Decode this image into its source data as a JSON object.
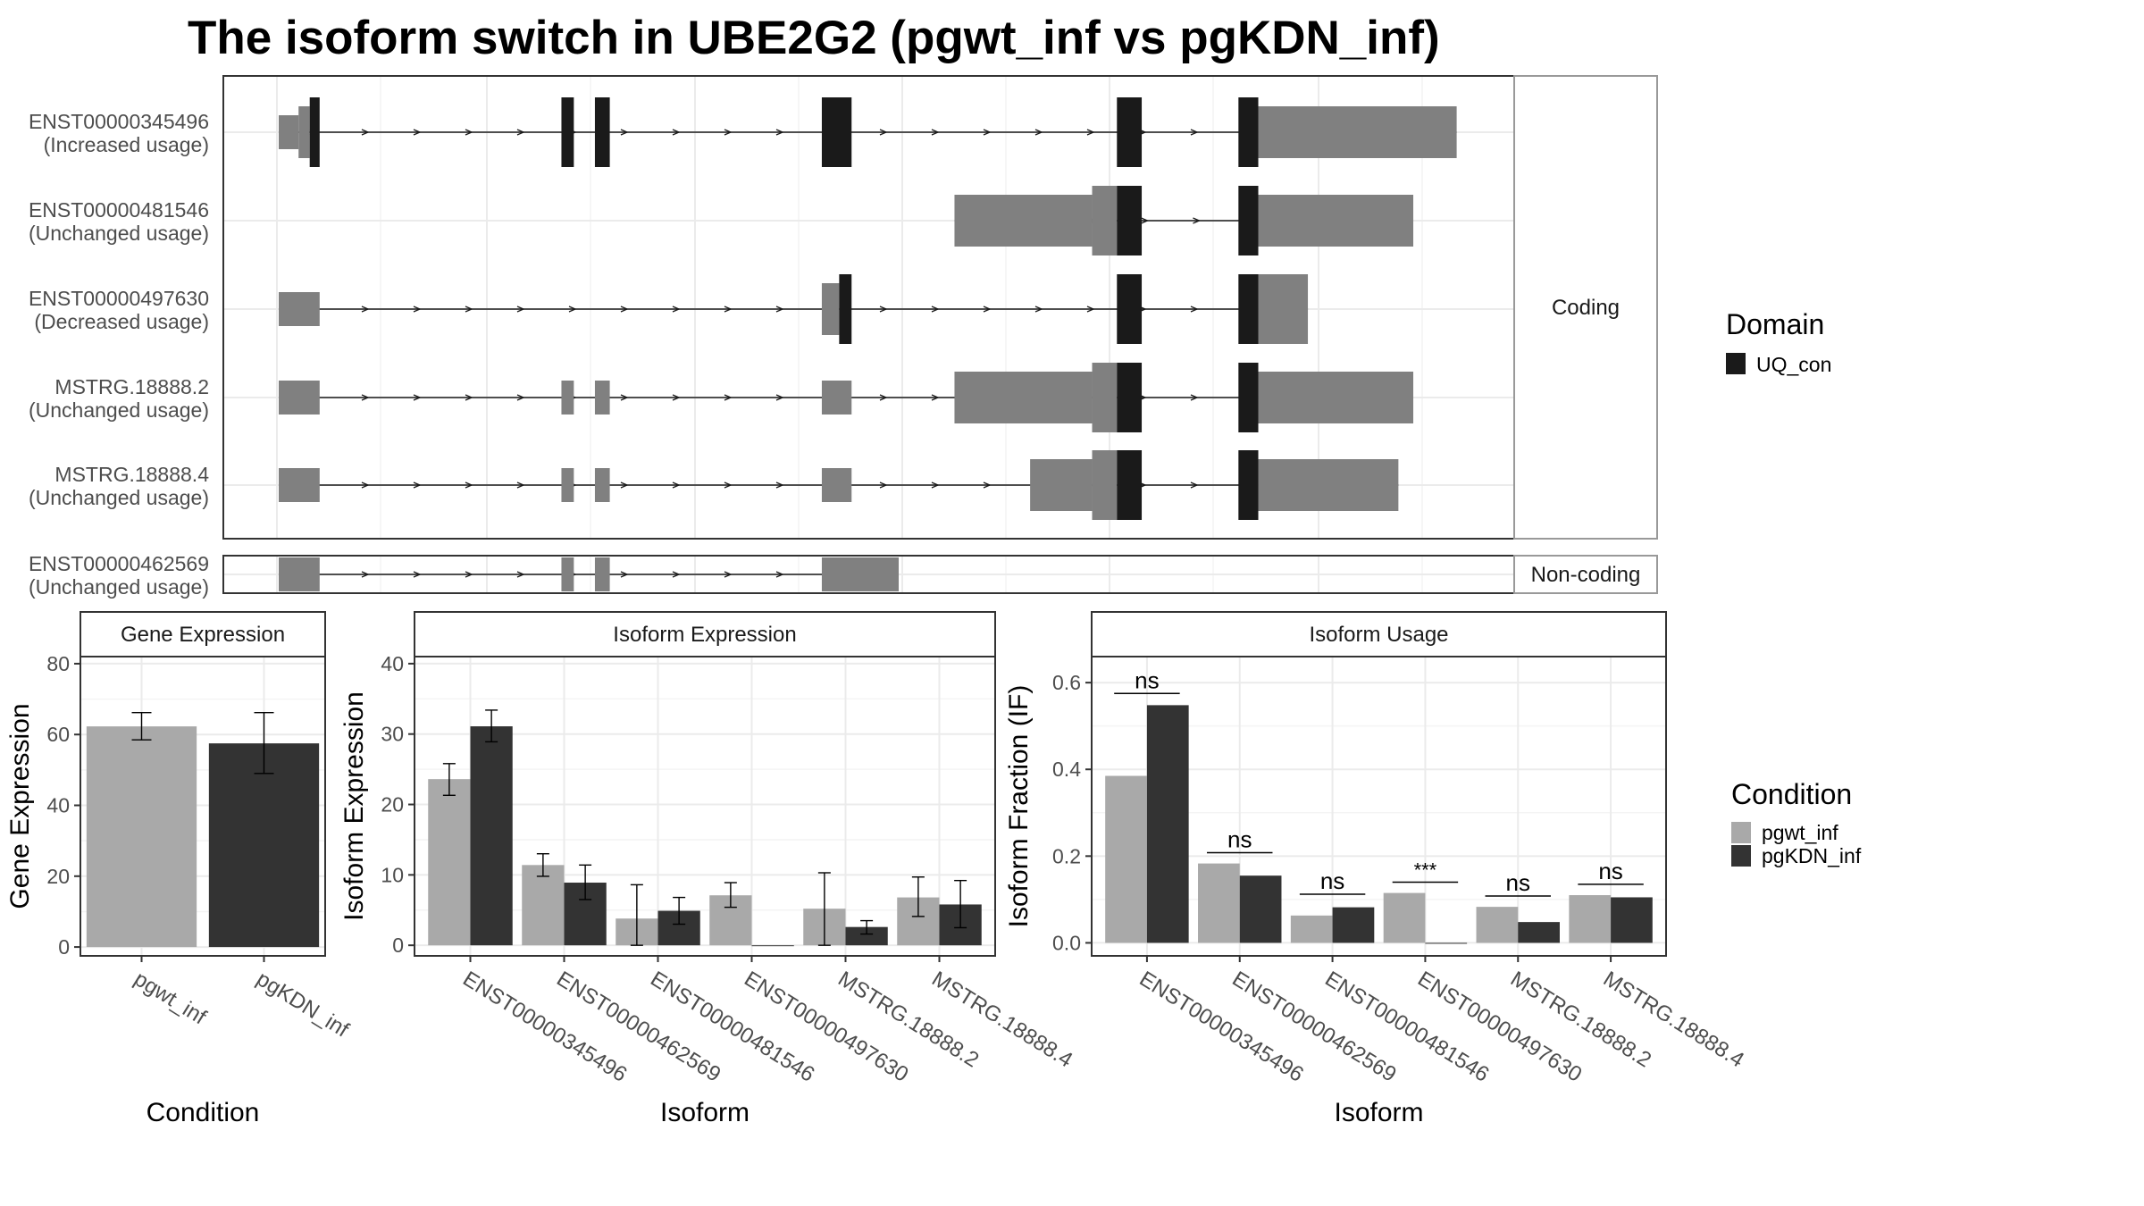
{
  "title": "The isoform switch in UBE2G2 (pgwt_inf vs pgKDN_inf)",
  "colors": {
    "domain": "#1a1a1a",
    "utr": "#808080",
    "pgwt_inf": "#a9a9a9",
    "pgKDN_inf": "#333333",
    "frame": "#333333",
    "grid_major": "#ebebeb",
    "grid_minor": "#f4f4f4",
    "strip_fill": "#ffffff"
  },
  "legend_domain": {
    "title": "Domain",
    "items": [
      {
        "label": "UQ_con",
        "color": "#1a1a1a"
      }
    ]
  },
  "legend_condition": {
    "title": "Condition",
    "items": [
      {
        "label": "pgwt_inf",
        "color": "#a9a9a9"
      },
      {
        "label": "pgKDN_inf",
        "color": "#333333"
      }
    ]
  },
  "structure": {
    "facets": [
      "Coding",
      "Non-coding"
    ],
    "transcripts": [
      {
        "id": "ENST00000345496",
        "usage": "(Increased usage)",
        "facet": "Coding",
        "intron": [
          0.0,
          0.95
        ],
        "utr_thin": [
          [
            0.0,
            0.016
          ]
        ],
        "utr_thick": [
          [
            0.016,
            0.025
          ],
          [
            0.79,
            0.95
          ]
        ],
        "cds": [
          [
            0.025,
            0.033
          ],
          [
            0.228,
            0.238
          ],
          [
            0.255,
            0.267
          ],
          [
            0.438,
            0.462
          ],
          [
            0.676,
            0.696
          ],
          [
            0.774,
            0.79
          ]
        ]
      },
      {
        "id": "ENST00000481546",
        "usage": "(Unchanged usage)",
        "facet": "Coding",
        "intron": [
          0.545,
          0.915
        ],
        "utr_thin": [],
        "utr_thick": [
          [
            0.545,
            0.656
          ],
          [
            0.656,
            0.676
          ],
          [
            0.79,
            0.915
          ]
        ],
        "cds": [
          [
            0.676,
            0.696
          ],
          [
            0.774,
            0.79
          ]
        ]
      },
      {
        "id": "ENST00000497630",
        "usage": "(Decreased usage)",
        "facet": "Coding",
        "intron": [
          0.0,
          0.83
        ],
        "utr_thin": [
          [
            0.0,
            0.033
          ]
        ],
        "utr_thick": [
          [
            0.438,
            0.452
          ],
          [
            0.79,
            0.83
          ]
        ],
        "cds": [
          [
            0.452,
            0.462
          ],
          [
            0.676,
            0.696
          ],
          [
            0.774,
            0.79
          ]
        ]
      },
      {
        "id": "MSTRG.18888.2",
        "usage": "(Unchanged usage)",
        "facet": "Coding",
        "intron": [
          0.0,
          0.915
        ],
        "utr_thin": [
          [
            0.0,
            0.033
          ],
          [
            0.228,
            0.238
          ],
          [
            0.255,
            0.267
          ],
          [
            0.438,
            0.462
          ]
        ],
        "utr_thick": [
          [
            0.545,
            0.656
          ],
          [
            0.656,
            0.676
          ],
          [
            0.79,
            0.915
          ]
        ],
        "cds": [
          [
            0.676,
            0.696
          ],
          [
            0.774,
            0.79
          ]
        ]
      },
      {
        "id": "MSTRG.18888.4",
        "usage": "(Unchanged usage)",
        "facet": "Coding",
        "intron": [
          0.0,
          0.903
        ],
        "utr_thin": [
          [
            0.0,
            0.033
          ],
          [
            0.228,
            0.238
          ],
          [
            0.255,
            0.267
          ],
          [
            0.438,
            0.462
          ]
        ],
        "utr_thick": [
          [
            0.606,
            0.656
          ],
          [
            0.656,
            0.676
          ],
          [
            0.79,
            0.903
          ]
        ],
        "cds": [
          [
            0.676,
            0.696
          ],
          [
            0.774,
            0.79
          ]
        ]
      },
      {
        "id": "ENST00000462569",
        "usage": "(Unchanged usage)",
        "facet": "Non-coding",
        "intron": [
          0.0,
          0.5
        ],
        "utr_thin": [
          [
            0.0,
            0.033
          ],
          [
            0.228,
            0.238
          ],
          [
            0.255,
            0.267
          ],
          [
            0.438,
            0.5
          ]
        ],
        "utr_thick": [],
        "cds": []
      }
    ]
  },
  "chart_data": [
    {
      "type": "bar",
      "title": "Gene Expression",
      "xlabel": "Condition",
      "ylabel": "Gene Expression",
      "categories": [
        "pgwt_inf",
        "pgKDN_inf"
      ],
      "values": [
        62.3,
        57.5
      ],
      "error_low": [
        58.5,
        49.0
      ],
      "error_high": [
        66.2,
        66.2
      ],
      "ylim": [
        -2.5,
        82
      ],
      "yticks": [
        0,
        20,
        40,
        60,
        80
      ]
    },
    {
      "type": "bar",
      "title": "Isoform Expression",
      "xlabel": "Isoform",
      "ylabel": "Isoform Expression",
      "categories": [
        "ENST00000345496",
        "ENST00000462569",
        "ENST00000481546",
        "ENST00000497630",
        "MSTRG.18888.2",
        "MSTRG.18888.4"
      ],
      "series": [
        {
          "name": "pgwt_inf",
          "values": [
            23.6,
            11.4,
            3.8,
            7.1,
            5.2,
            6.8
          ],
          "err_low": [
            21.3,
            9.8,
            0.0,
            5.4,
            0.0,
            4.1
          ],
          "err_high": [
            25.8,
            13.0,
            8.6,
            8.9,
            10.3,
            9.7
          ]
        },
        {
          "name": "pgKDN_inf",
          "values": [
            31.1,
            8.9,
            4.9,
            0.0,
            2.6,
            5.8
          ],
          "err_low": [
            28.9,
            6.5,
            3.0,
            null,
            1.6,
            2.5
          ],
          "err_high": [
            33.4,
            11.4,
            6.8,
            null,
            3.5,
            9.2
          ]
        }
      ],
      "ylim": [
        -1.5,
        41
      ],
      "yticks": [
        0,
        10,
        20,
        30,
        40
      ]
    },
    {
      "type": "bar",
      "title": "Isoform Usage",
      "xlabel": "Isoform",
      "ylabel": "Isoform Fraction (IF)",
      "categories": [
        "ENST00000345496",
        "ENST00000462569",
        "ENST00000481546",
        "ENST00000497630",
        "MSTRG.18888.2",
        "MSTRG.18888.4"
      ],
      "series": [
        {
          "name": "pgwt_inf",
          "values": [
            0.385,
            0.183,
            0.063,
            0.115,
            0.083,
            0.11
          ]
        },
        {
          "name": "pgKDN_inf",
          "values": [
            0.548,
            0.155,
            0.082,
            0.0,
            0.048,
            0.105
          ]
        }
      ],
      "significance": [
        {
          "label": "ns",
          "y": 0.575
        },
        {
          "label": "ns",
          "y": 0.208
        },
        {
          "label": "ns",
          "y": 0.112
        },
        {
          "label": "***",
          "y": 0.14
        },
        {
          "label": "ns",
          "y": 0.108
        },
        {
          "label": "ns",
          "y": 0.135
        }
      ],
      "ylim": [
        -0.03,
        0.66
      ],
      "yticks": [
        0.0,
        0.2,
        0.4,
        0.6
      ],
      "ytick_labels": [
        "0.0",
        "0.2",
        "0.4",
        "0.6"
      ]
    }
  ]
}
